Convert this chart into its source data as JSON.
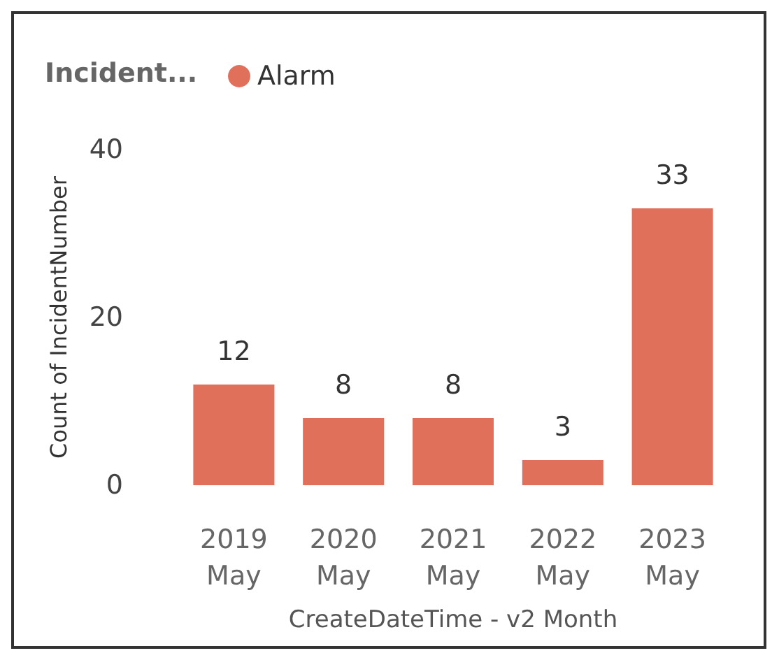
{
  "chart_data": {
    "type": "bar",
    "legend_title": "Incident...",
    "xlabel": "CreateDateTime - v2 Month",
    "ylabel": "Count of IncidentNumber",
    "categories": [
      "2019\nMay",
      "2020\nMay",
      "2021\nMay",
      "2022\nMay",
      "2023\nMay"
    ],
    "series": [
      {
        "name": "Alarm",
        "color": "#e0705a",
        "values": [
          12,
          8,
          8,
          3,
          33
        ]
      }
    ],
    "ylim": [
      0,
      40
    ],
    "yticks": [
      0,
      20,
      40
    ],
    "grid": false,
    "legend": "top left",
    "data_labels": true
  }
}
